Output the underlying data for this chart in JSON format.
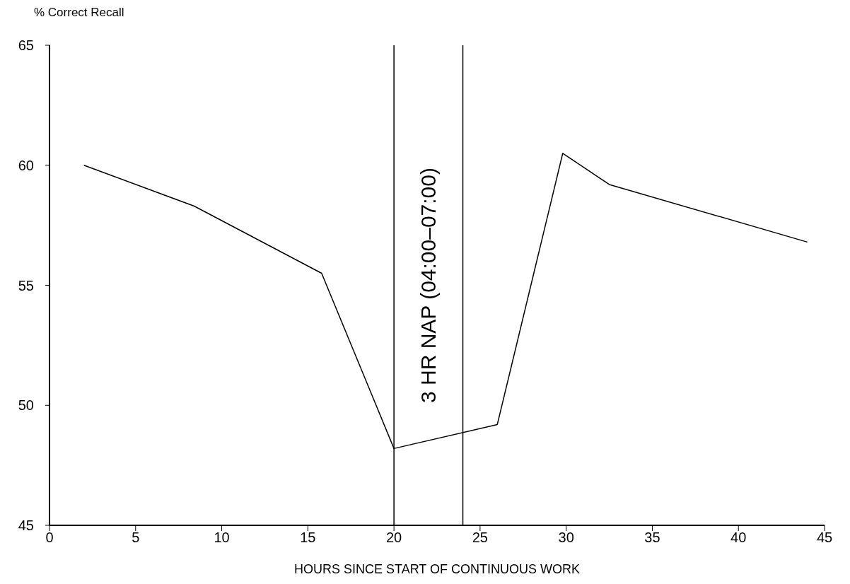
{
  "chart_data": {
    "type": "line",
    "ylabel": "% Correct Recall",
    "xlabel": "HOURS SINCE START OF CONTINUOUS WORK",
    "x": [
      2,
      8.4,
      15.8,
      20,
      26,
      29.8,
      32.5,
      44
    ],
    "series": [
      {
        "color": "#000000",
        "values": [
          60,
          58.3,
          55.5,
          48.2,
          49.2,
          60.5,
          59.2,
          56.8
        ]
      }
    ],
    "xlim": [
      0,
      45
    ],
    "xticks": [
      0,
      5,
      10,
      15,
      20,
      25,
      30,
      35,
      40,
      45
    ],
    "ylim": [
      45,
      65
    ],
    "yticks": [
      45,
      50,
      55,
      60,
      65
    ],
    "ref_lines": [
      {
        "axis": "x",
        "value": 20
      },
      {
        "axis": "x",
        "value": 24
      }
    ],
    "annotations": [
      "3 HR NAP  (04:00–07:00)"
    ],
    "grid": false,
    "legend": false,
    "marker": "none",
    "line_style": "solid"
  }
}
